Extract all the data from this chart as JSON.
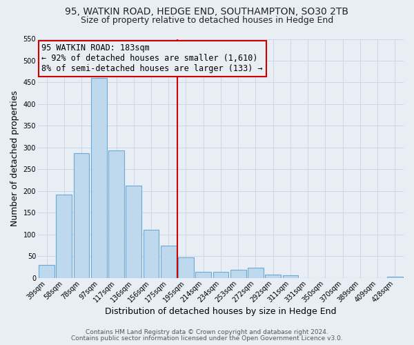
{
  "title": "95, WATKIN ROAD, HEDGE END, SOUTHAMPTON, SO30 2TB",
  "subtitle": "Size of property relative to detached houses in Hedge End",
  "xlabel": "Distribution of detached houses by size in Hedge End",
  "ylabel": "Number of detached properties",
  "bar_labels": [
    "39sqm",
    "58sqm",
    "78sqm",
    "97sqm",
    "117sqm",
    "136sqm",
    "156sqm",
    "175sqm",
    "195sqm",
    "214sqm",
    "234sqm",
    "253sqm",
    "272sqm",
    "292sqm",
    "311sqm",
    "331sqm",
    "350sqm",
    "370sqm",
    "389sqm",
    "409sqm",
    "428sqm"
  ],
  "bar_values": [
    30,
    192,
    287,
    460,
    293,
    213,
    110,
    74,
    47,
    14,
    14,
    18,
    23,
    8,
    5,
    0,
    0,
    0,
    0,
    0,
    3
  ],
  "bar_color": "#bed8ed",
  "bar_edge_color": "#6aaad4",
  "vline_x": 7.5,
  "vline_color": "#cc0000",
  "annotation_text": "95 WATKIN ROAD: 183sqm\n← 92% of detached houses are smaller (1,610)\n8% of semi-detached houses are larger (133) →",
  "annotation_box_edge_color": "#cc0000",
  "ylim": [
    0,
    550
  ],
  "yticks": [
    0,
    50,
    100,
    150,
    200,
    250,
    300,
    350,
    400,
    450,
    500,
    550
  ],
  "grid_color": "#c8d8e8",
  "bg_color": "#e8eef4",
  "footer1": "Contains HM Land Registry data © Crown copyright and database right 2024.",
  "footer2": "Contains public sector information licensed under the Open Government Licence v3.0.",
  "title_fontsize": 10,
  "subtitle_fontsize": 9,
  "tick_fontsize": 7,
  "label_fontsize": 9,
  "footer_fontsize": 6.5
}
